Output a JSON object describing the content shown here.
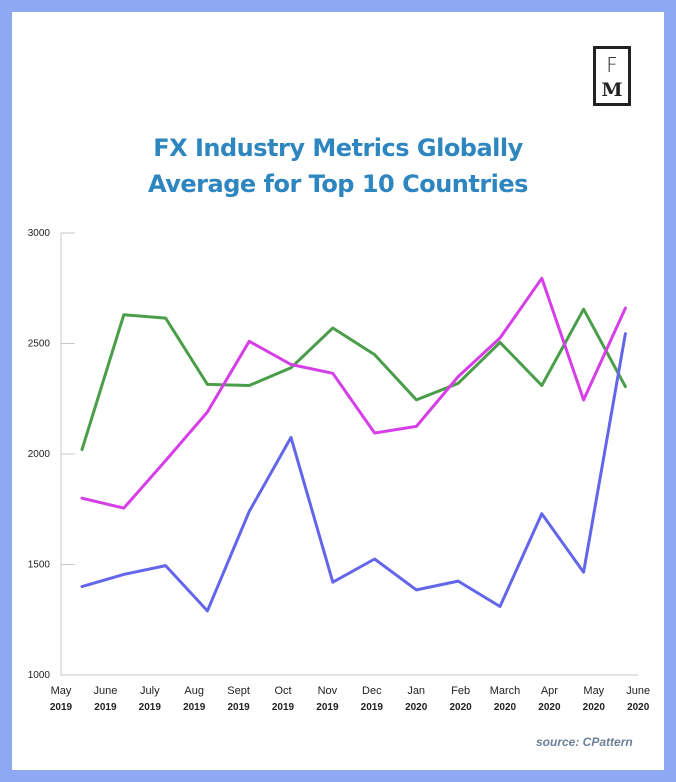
{
  "logo": {
    "line1": "F",
    "line2": "M"
  },
  "title": {
    "line1": "FX Industry Metrics Globally",
    "line2": "Average for Top 10 Countries"
  },
  "source": "source: CPattern",
  "colors": {
    "frame": "#8ea8f4",
    "title": "#2e86c1",
    "green": "#4a9e4a",
    "magenta": "#d63ee8",
    "blue": "#6366ea"
  },
  "chart_data": {
    "type": "line",
    "ylim": [
      1000,
      3000
    ],
    "yticks": [
      1000,
      1500,
      2000,
      2500,
      3000
    ],
    "x_labels": [
      {
        "month": "May",
        "year": "2019"
      },
      {
        "month": "June",
        "year": "2019"
      },
      {
        "month": "July",
        "year": "2019"
      },
      {
        "month": "Aug",
        "year": "2019"
      },
      {
        "month": "Sept",
        "year": "2019"
      },
      {
        "month": "Oct",
        "year": "2019"
      },
      {
        "month": "Nov",
        "year": "2019"
      },
      {
        "month": "Dec",
        "year": "2019"
      },
      {
        "month": "Jan",
        "year": "2020"
      },
      {
        "month": "Feb",
        "year": "2020"
      },
      {
        "month": "March",
        "year": "2020"
      },
      {
        "month": "Apr",
        "year": "2020"
      },
      {
        "month": "May",
        "year": "2020"
      },
      {
        "month": "June",
        "year": "2020"
      }
    ],
    "grid": false,
    "series": [
      {
        "color": "#4a9e4a",
        "values": [
          2020,
          2630,
          2615,
          2315,
          2310,
          2390,
          2570,
          2450,
          2245,
          2320,
          2505,
          2310,
          2655,
          2305
        ]
      },
      {
        "color": "#d63ee8",
        "values": [
          1800,
          1755,
          1970,
          2190,
          2510,
          2405,
          2365,
          2095,
          2125,
          2350,
          2525,
          2795,
          2245,
          2660
        ]
      },
      {
        "color": "#6366ea",
        "values": [
          1400,
          1455,
          1495,
          1290,
          1740,
          2075,
          1420,
          1525,
          1385,
          1425,
          1310,
          1730,
          1465,
          2545
        ]
      }
    ]
  }
}
